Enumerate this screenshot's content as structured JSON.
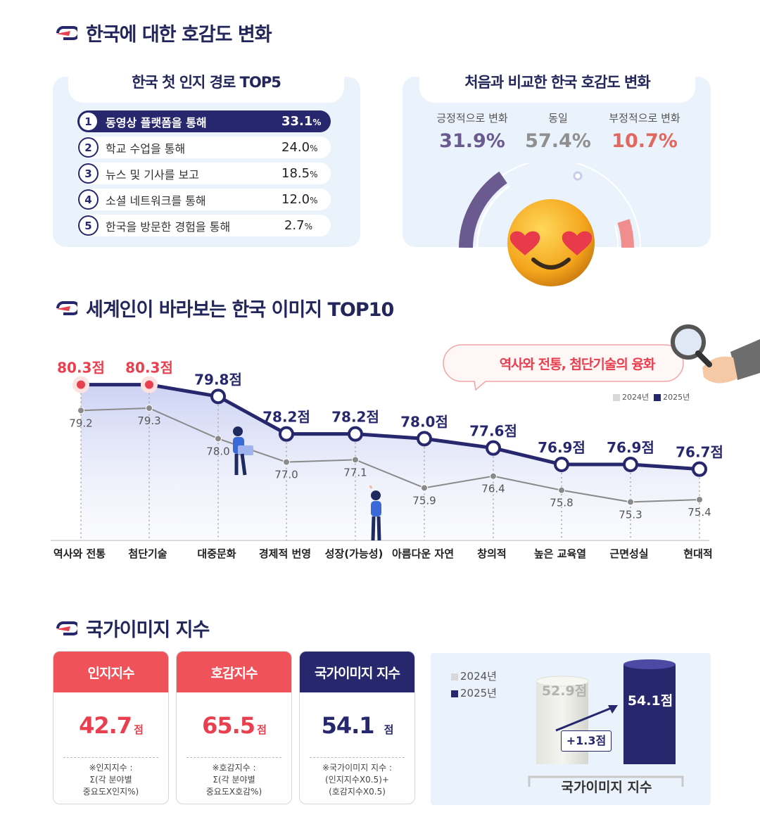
{
  "section1": {
    "title": "한국에 대한 호감도 변화",
    "top5": {
      "title": "한국 첫 인지 경로 TOP5",
      "items": [
        {
          "rank": "1",
          "label": "동영상 플랫폼을 통해",
          "value": "33.1",
          "unit": "%"
        },
        {
          "rank": "2",
          "label": "학교 수업을 통해",
          "value": "24.0",
          "unit": "%"
        },
        {
          "rank": "3",
          "label": "뉴스 및 기사를 보고",
          "value": "18.5",
          "unit": "%"
        },
        {
          "rank": "4",
          "label": "소셜 네트워크를 통해",
          "value": "12.0",
          "unit": "%"
        },
        {
          "rank": "5",
          "label": "한국을 방문한 경험을 통해",
          "value": "2.7",
          "unit": "%"
        }
      ]
    },
    "change": {
      "title": "처음과 비교한 한국 호감도 변화",
      "positive": {
        "label": "긍정적으로 변화",
        "value": "31.9%"
      },
      "same": {
        "label": "동일",
        "value": "57.4%"
      },
      "negative": {
        "label": "부정적으로 변화",
        "value": "10.7%"
      }
    }
  },
  "section2": {
    "title": "세계인이 바라보는 한국 이미지 TOP10",
    "callout": "역사와 전통, 첨단기술의 융화",
    "legend_2024": "2024년",
    "legend_2025": "2025년"
  },
  "chart_data": {
    "type": "line",
    "title": "세계인이 바라보는 한국 이미지 TOP10",
    "categories": [
      "역사와 전통",
      "첨단기술",
      "대중문화",
      "경제적 번영",
      "성장(가능성)",
      "아름다운 자연",
      "창의적",
      "높은 교육열",
      "근면성실",
      "현대적"
    ],
    "series": [
      {
        "name": "2025년",
        "values": [
          80.3,
          80.3,
          79.8,
          78.2,
          78.2,
          78.0,
          77.6,
          76.9,
          76.9,
          76.7
        ],
        "labels": [
          "80.3점",
          "80.3점",
          "79.8점",
          "78.2점",
          "78.2점",
          "78.0점",
          "77.6점",
          "76.9점",
          "76.9점",
          "76.7점"
        ],
        "color": "#27276e",
        "highlight": [
          0,
          1
        ],
        "highlight_color": "#e8404e"
      },
      {
        "name": "2024년",
        "values": [
          79.2,
          79.3,
          78.0,
          77.0,
          77.1,
          75.9,
          76.4,
          75.8,
          75.3,
          75.4
        ],
        "labels": [
          "79.2",
          "79.3",
          "78.0",
          "77.0",
          "77.1",
          "75.9",
          "76.4",
          "75.8",
          "75.3",
          "75.4"
        ],
        "color": "#8a8a8a"
      }
    ],
    "ylim": [
      73.6,
      81.7
    ],
    "xlabel": "",
    "ylabel": "",
    "legend": "top-right"
  },
  "section3": {
    "title": "국가이미지 지수",
    "cards": [
      {
        "title": "인지지수",
        "value": "42.7",
        "unit": "점",
        "note1": "※인지지수 :",
        "note2": "Σ(각 분야별",
        "note3": "중요도X인지%)",
        "color": "#f0525a"
      },
      {
        "title": "호감지수",
        "value": "65.5",
        "unit": "점",
        "note1": "※호감지수 :",
        "note2": "Σ(각 분야별",
        "note3": "중요도X호감%)",
        "color": "#f0525a"
      },
      {
        "title": "국가이미지 지수",
        "value": "54.1",
        "unit": "점",
        "note1": "※국가이미지 지수 :",
        "note2": "(인지지수X0.5)+",
        "note3": "(호감지수X0.5)",
        "color": "#27276e"
      }
    ],
    "compare": {
      "legend_2024": "2024년",
      "legend_2025": "2025년",
      "value_2024": 52.9,
      "label_2024": "52.9점",
      "value_2025": 54.1,
      "label_2025": "54.1점",
      "delta": "+1.3점",
      "caption": "국가이미지 지수"
    }
  }
}
